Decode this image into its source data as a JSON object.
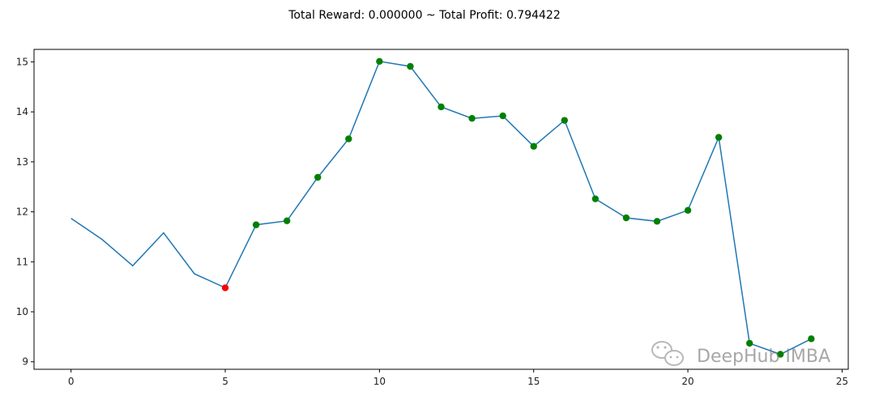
{
  "chart_data": {
    "type": "line",
    "title": "Total Reward: 0.000000 ~ Total Profit: 0.794422",
    "xlabel": "",
    "ylabel": "",
    "xlim": [
      -1.2,
      25.2
    ],
    "ylim": [
      8.85,
      15.25
    ],
    "xticks": [
      0,
      5,
      10,
      15,
      20,
      25
    ],
    "yticks": [
      9,
      10,
      11,
      12,
      13,
      14,
      15
    ],
    "grid": false,
    "line_color": "#1f77b4",
    "x": [
      0,
      1,
      2,
      3,
      4,
      5,
      6,
      7,
      8,
      9,
      10,
      11,
      12,
      13,
      14,
      15,
      16,
      17,
      18,
      19,
      20,
      21,
      22,
      23,
      24
    ],
    "values": [
      11.87,
      11.45,
      10.92,
      11.58,
      10.76,
      10.48,
      11.74,
      11.82,
      12.69,
      13.46,
      15.01,
      14.91,
      14.1,
      13.87,
      13.92,
      13.31,
      13.83,
      12.26,
      11.88,
      11.81,
      12.03,
      13.49,
      9.37,
      9.15,
      9.46
    ],
    "markers": {
      "sell": {
        "color": "#ff0000",
        "x": [
          5
        ]
      },
      "buy": {
        "color": "#008000",
        "x": [
          6,
          7,
          8,
          9,
          10,
          11,
          12,
          13,
          14,
          15,
          16,
          17,
          18,
          19,
          20,
          21,
          22,
          23,
          24
        ]
      }
    }
  },
  "watermark": {
    "text": "DeepHub IMBA",
    "icon": "wechat-icon"
  }
}
